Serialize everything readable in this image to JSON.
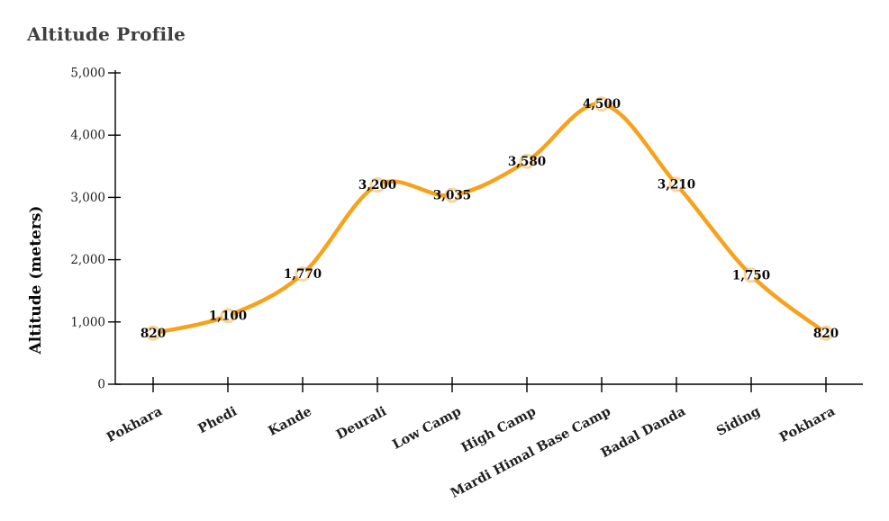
{
  "chart": {
    "title": "Altitude Profile",
    "y_axis_title": "Altitude (meters)"
  },
  "chart_data": {
    "type": "line",
    "title": "Altitude Profile",
    "xlabel": "",
    "ylabel": "Altitude (meters)",
    "categories": [
      "Pokhara",
      "Phedi",
      "Kande",
      "Deurali",
      "Low Camp",
      "High Camp",
      "Mardi Himal Base Camp",
      "Badal Danda",
      "Siding",
      "Pokhara"
    ],
    "values": [
      820,
      1100,
      1770,
      3200,
      3035,
      3580,
      4500,
      3210,
      1750,
      820
    ],
    "point_labels": [
      "820",
      "1,100",
      "1,770",
      "3,200",
      "3,035",
      "3,580",
      "4,500",
      "3,210",
      "1,750",
      "820"
    ],
    "ylim": [
      0,
      5000
    ],
    "yticks": [
      {
        "value": 0,
        "label": "0"
      },
      {
        "value": 1000,
        "label": "1,000"
      },
      {
        "value": 2000,
        "label": "2,000"
      },
      {
        "value": 3000,
        "label": "3,000"
      },
      {
        "value": 4000,
        "label": "4,000"
      },
      {
        "value": 5000,
        "label": "5,000"
      }
    ],
    "grid": false,
    "legend_position": "none",
    "line_smooth": true,
    "colors": {
      "line": "#F6A21C",
      "marker_fill": "#FFFFFF",
      "marker_stroke": "#F6A21C",
      "data_label": "#0A0A0A",
      "axis": "#000000",
      "tick_label": "#1F1F1F",
      "title": "#3F3F3F"
    }
  }
}
